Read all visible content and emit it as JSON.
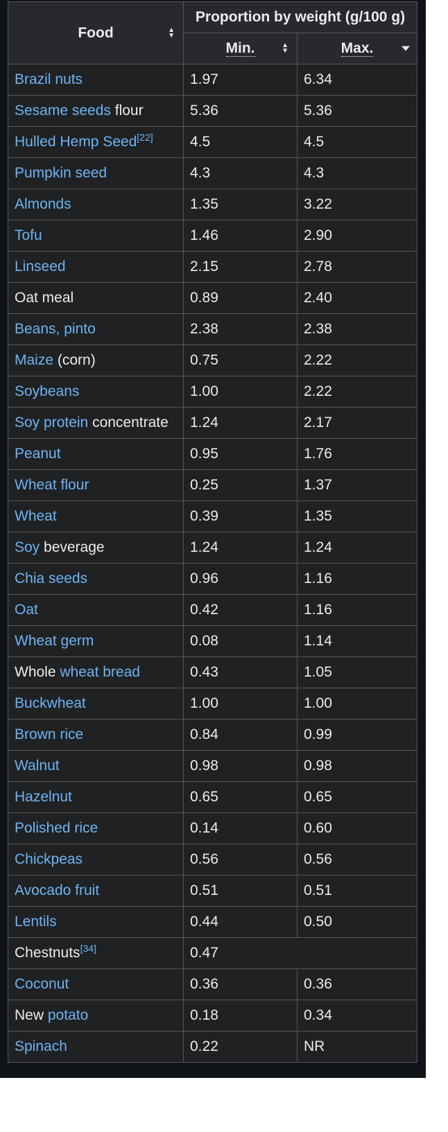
{
  "header": {
    "food": "Food",
    "group": "Proportion by weight (g/100 g)",
    "min": "Min.",
    "max": "Max."
  },
  "rows": [
    {
      "parts": [
        {
          "t": "Brazil nuts",
          "link": true
        }
      ],
      "min": "1.97",
      "max": "6.34"
    },
    {
      "parts": [
        {
          "t": "Sesame seeds",
          "link": true
        },
        {
          "t": " flour",
          "link": false
        }
      ],
      "min": "5.36",
      "max": "5.36"
    },
    {
      "parts": [
        {
          "t": "Hulled Hemp Seed",
          "link": true
        },
        {
          "t": "[22]",
          "link": true,
          "sup": true
        }
      ],
      "min": "4.5",
      "max": "4.5"
    },
    {
      "parts": [
        {
          "t": "Pumpkin seed",
          "link": true
        }
      ],
      "min": "4.3",
      "max": "4.3"
    },
    {
      "parts": [
        {
          "t": "Almonds",
          "link": true
        }
      ],
      "min": "1.35",
      "max": "3.22"
    },
    {
      "parts": [
        {
          "t": "Tofu",
          "link": true
        }
      ],
      "min": "1.46",
      "max": "2.90"
    },
    {
      "parts": [
        {
          "t": "Linseed",
          "link": true
        }
      ],
      "min": "2.15",
      "max": "2.78"
    },
    {
      "parts": [
        {
          "t": "Oat meal",
          "link": false
        }
      ],
      "min": "0.89",
      "max": "2.40"
    },
    {
      "parts": [
        {
          "t": "Beans, pinto",
          "link": true
        }
      ],
      "min": "2.38",
      "max": "2.38"
    },
    {
      "parts": [
        {
          "t": "Maize",
          "link": true
        },
        {
          "t": " (corn)",
          "link": false
        }
      ],
      "min": "0.75",
      "max": "2.22"
    },
    {
      "parts": [
        {
          "t": "Soybeans",
          "link": true
        }
      ],
      "min": "1.00",
      "max": "2.22"
    },
    {
      "parts": [
        {
          "t": "Soy protein",
          "link": true
        },
        {
          "t": " concentrate",
          "link": false
        }
      ],
      "min": "1.24",
      "max": "2.17"
    },
    {
      "parts": [
        {
          "t": "Peanut",
          "link": true
        }
      ],
      "min": "0.95",
      "max": "1.76"
    },
    {
      "parts": [
        {
          "t": "Wheat flour",
          "link": true
        }
      ],
      "min": "0.25",
      "max": "1.37"
    },
    {
      "parts": [
        {
          "t": "Wheat",
          "link": true
        }
      ],
      "min": "0.39",
      "max": "1.35"
    },
    {
      "parts": [
        {
          "t": "Soy",
          "link": true
        },
        {
          "t": " beverage",
          "link": false
        }
      ],
      "min": "1.24",
      "max": "1.24"
    },
    {
      "parts": [
        {
          "t": "Chia seeds",
          "link": true
        }
      ],
      "min": "0.96",
      "max": "1.16"
    },
    {
      "parts": [
        {
          "t": "Oat",
          "link": true
        }
      ],
      "min": "0.42",
      "max": "1.16"
    },
    {
      "parts": [
        {
          "t": "Wheat germ",
          "link": true
        }
      ],
      "min": "0.08",
      "max": "1.14"
    },
    {
      "parts": [
        {
          "t": "Whole ",
          "link": false
        },
        {
          "t": "wheat bread",
          "link": true
        }
      ],
      "min": "0.43",
      "max": "1.05"
    },
    {
      "parts": [
        {
          "t": "Buckwheat",
          "link": true
        }
      ],
      "min": "1.00",
      "max": "1.00"
    },
    {
      "parts": [
        {
          "t": "Brown rice",
          "link": true
        }
      ],
      "min": "0.84",
      "max": "0.99"
    },
    {
      "parts": [
        {
          "t": "Walnut",
          "link": true
        }
      ],
      "min": "0.98",
      "max": "0.98"
    },
    {
      "parts": [
        {
          "t": "Hazelnut",
          "link": true
        }
      ],
      "min": "0.65",
      "max": "0.65"
    },
    {
      "parts": [
        {
          "t": "Polished rice",
          "link": true
        }
      ],
      "min": "0.14",
      "max": "0.60"
    },
    {
      "parts": [
        {
          "t": "Chickpeas",
          "link": true
        }
      ],
      "min": "0.56",
      "max": "0.56"
    },
    {
      "parts": [
        {
          "t": "Avocado fruit",
          "link": true
        }
      ],
      "min": "0.51",
      "max": "0.51"
    },
    {
      "parts": [
        {
          "t": "Lentils",
          "link": true
        }
      ],
      "min": "0.44",
      "max": "0.50"
    },
    {
      "parts": [
        {
          "t": "Chestnuts",
          "link": false
        },
        {
          "t": "[34]",
          "link": true,
          "sup": true
        }
      ],
      "min": "0.47",
      "max": null,
      "merged": true
    },
    {
      "parts": [
        {
          "t": "Coconut",
          "link": true
        }
      ],
      "min": "0.36",
      "max": "0.36"
    },
    {
      "parts": [
        {
          "t": "New ",
          "link": false
        },
        {
          "t": "potato",
          "link": true
        }
      ],
      "min": "0.18",
      "max": "0.34"
    },
    {
      "parts": [
        {
          "t": "Spinach",
          "link": true
        }
      ],
      "min": "0.22",
      "max": "NR"
    }
  ],
  "colors": {
    "link": "#6cb4f5",
    "text": "#eaecf0",
    "cell_bg": "#202122",
    "header_bg": "#27292d",
    "border": "#54595d"
  }
}
